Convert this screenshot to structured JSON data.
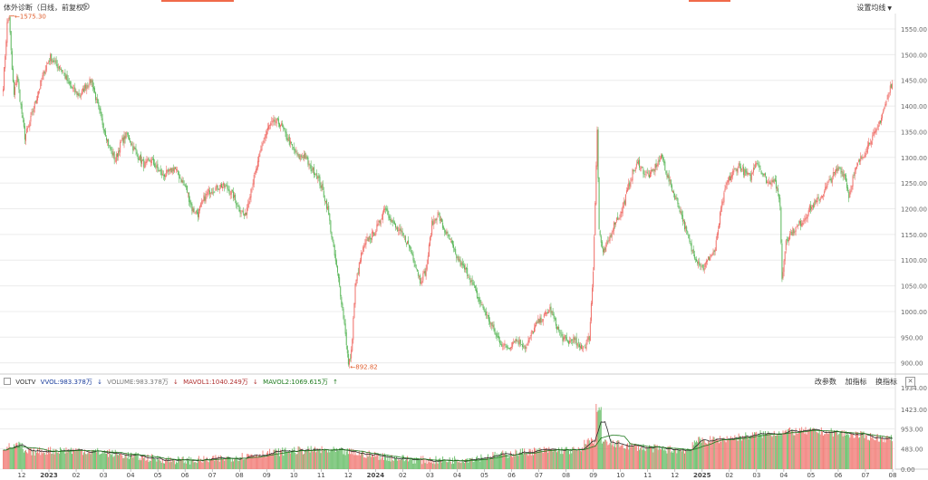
{
  "header": {
    "title": "体外诊断（日线，前复权）",
    "ma_settings_label": "设置均线",
    "colors": {
      "up": "#f0706a",
      "down": "#5cb85c",
      "accent": "#f06a4a"
    }
  },
  "volume_legend": {
    "vol_label": "VOLTV",
    "vvol": "VVOL:983.378万",
    "volume": "VOLUME:983.378万",
    "mavol1": "MAVOL1:1040.249万",
    "mavol2": "MAVOL2:1069.615万",
    "buttons": [
      "改参数",
      "加指标",
      "换指标"
    ]
  },
  "chart_data": [
    {
      "type": "candlestick",
      "title": "体外诊断（日线，前复权）",
      "y_ticks": [
        "1550.00",
        "1500.00",
        "1450.00",
        "1400.00",
        "1350.00",
        "1300.00",
        "1250.00",
        "1200.00",
        "1150.00",
        "1100.00",
        "1050.00",
        "1000.00",
        "950.00",
        "900.00"
      ],
      "ylim": [
        880,
        1580
      ],
      "max_label": "1575.30",
      "min_label": "892.82",
      "max_value": 1575.3,
      "min_value": 892.82,
      "x_ticks": [
        "12",
        "2023",
        "02",
        "03",
        "04",
        "05",
        "06",
        "07",
        "08",
        "09",
        "10",
        "11",
        "12",
        "2024",
        "02",
        "03",
        "04",
        "05",
        "06",
        "07",
        "08",
        "09",
        "10",
        "11",
        "12",
        "2025",
        "02",
        "03",
        "04",
        "05",
        "06",
        "07",
        "08"
      ],
      "anchors": [
        [
          0,
          1440
        ],
        [
          2,
          1500
        ],
        [
          4,
          1560
        ],
        [
          6,
          1575
        ],
        [
          9,
          1470
        ],
        [
          11,
          1420
        ],
        [
          14,
          1460
        ],
        [
          18,
          1400
        ],
        [
          22,
          1340
        ],
        [
          26,
          1360
        ],
        [
          30,
          1390
        ],
        [
          36,
          1430
        ],
        [
          42,
          1470
        ],
        [
          48,
          1495
        ],
        [
          54,
          1480
        ],
        [
          60,
          1470
        ],
        [
          66,
          1445
        ],
        [
          72,
          1430
        ],
        [
          78,
          1420
        ],
        [
          84,
          1440
        ],
        [
          90,
          1450
        ],
        [
          96,
          1400
        ],
        [
          102,
          1360
        ],
        [
          108,
          1320
        ],
        [
          114,
          1295
        ],
        [
          120,
          1330
        ],
        [
          126,
          1345
        ],
        [
          132,
          1320
        ],
        [
          138,
          1300
        ],
        [
          144,
          1285
        ],
        [
          150,
          1295
        ],
        [
          156,
          1280
        ],
        [
          162,
          1265
        ],
        [
          168,
          1270
        ],
        [
          174,
          1280
        ],
        [
          180,
          1260
        ],
        [
          186,
          1240
        ],
        [
          192,
          1200
        ],
        [
          198,
          1190
        ],
        [
          204,
          1220
        ],
        [
          210,
          1235
        ],
        [
          216,
          1240
        ],
        [
          222,
          1245
        ],
        [
          228,
          1240
        ],
        [
          234,
          1225
        ],
        [
          240,
          1200
        ],
        [
          246,
          1185
        ],
        [
          252,
          1240
        ],
        [
          258,
          1280
        ],
        [
          264,
          1330
        ],
        [
          270,
          1360
        ],
        [
          276,
          1370
        ],
        [
          282,
          1365
        ],
        [
          288,
          1340
        ],
        [
          294,
          1320
        ],
        [
          300,
          1300
        ],
        [
          306,
          1305
        ],
        [
          312,
          1280
        ],
        [
          318,
          1270
        ],
        [
          324,
          1240
        ],
        [
          330,
          1200
        ],
        [
          336,
          1120
        ],
        [
          342,
          1050
        ],
        [
          348,
          960
        ],
        [
          351,
          895
        ],
        [
          354,
          920
        ],
        [
          358,
          1050
        ],
        [
          364,
          1110
        ],
        [
          370,
          1140
        ],
        [
          376,
          1150
        ],
        [
          382,
          1170
        ],
        [
          388,
          1205
        ],
        [
          394,
          1180
        ],
        [
          400,
          1160
        ],
        [
          406,
          1150
        ],
        [
          412,
          1130
        ],
        [
          418,
          1100
        ],
        [
          424,
          1060
        ],
        [
          430,
          1080
        ],
        [
          436,
          1170
        ],
        [
          442,
          1190
        ],
        [
          448,
          1160
        ],
        [
          454,
          1140
        ],
        [
          460,
          1110
        ],
        [
          466,
          1090
        ],
        [
          472,
          1075
        ],
        [
          478,
          1050
        ],
        [
          484,
          1020
        ],
        [
          490,
          1000
        ],
        [
          496,
          975
        ],
        [
          502,
          950
        ],
        [
          508,
          935
        ],
        [
          514,
          930
        ],
        [
          520,
          945
        ],
        [
          526,
          940
        ],
        [
          532,
          930
        ],
        [
          538,
          960
        ],
        [
          544,
          980
        ],
        [
          550,
          990
        ],
        [
          556,
          1005
        ],
        [
          562,
          975
        ],
        [
          568,
          950
        ],
        [
          574,
          940
        ],
        [
          580,
          945
        ],
        [
          586,
          930
        ],
        [
          592,
          935
        ],
        [
          596,
          950
        ],
        [
          600,
          1080
        ],
        [
          604,
          1355
        ],
        [
          606,
          1160
        ],
        [
          610,
          1110
        ],
        [
          616,
          1140
        ],
        [
          622,
          1175
        ],
        [
          628,
          1190
        ],
        [
          634,
          1230
        ],
        [
          640,
          1270
        ],
        [
          646,
          1290
        ],
        [
          652,
          1270
        ],
        [
          658,
          1265
        ],
        [
          664,
          1285
        ],
        [
          670,
          1300
        ],
        [
          676,
          1260
        ],
        [
          682,
          1230
        ],
        [
          688,
          1200
        ],
        [
          694,
          1160
        ],
        [
          700,
          1120
        ],
        [
          706,
          1100
        ],
        [
          712,
          1085
        ],
        [
          718,
          1105
        ],
        [
          724,
          1120
        ],
        [
          730,
          1200
        ],
        [
          736,
          1250
        ],
        [
          742,
          1270
        ],
        [
          748,
          1285
        ],
        [
          754,
          1270
        ],
        [
          760,
          1260
        ],
        [
          766,
          1295
        ],
        [
          772,
          1270
        ],
        [
          778,
          1250
        ],
        [
          784,
          1260
        ],
        [
          790,
          1210
        ],
        [
          792,
          1060
        ],
        [
          796,
          1140
        ],
        [
          802,
          1155
        ],
        [
          808,
          1165
        ],
        [
          814,
          1180
        ],
        [
          820,
          1200
        ],
        [
          826,
          1210
        ],
        [
          832,
          1225
        ],
        [
          838,
          1245
        ],
        [
          844,
          1265
        ],
        [
          850,
          1280
        ],
        [
          856,
          1265
        ],
        [
          860,
          1225
        ],
        [
          864,
          1260
        ],
        [
          870,
          1290
        ],
        [
          876,
          1310
        ],
        [
          882,
          1335
        ],
        [
          888,
          1350
        ],
        [
          894,
          1385
        ],
        [
          900,
          1420
        ],
        [
          904,
          1450
        ]
      ],
      "n_candles": 905
    },
    {
      "type": "bar",
      "title": "VOLTV",
      "y_ticks": [
        "1934.00",
        "1423.00",
        "953.00",
        "483.00",
        "0.00"
      ],
      "ylim": [
        0,
        1934
      ]
    }
  ]
}
